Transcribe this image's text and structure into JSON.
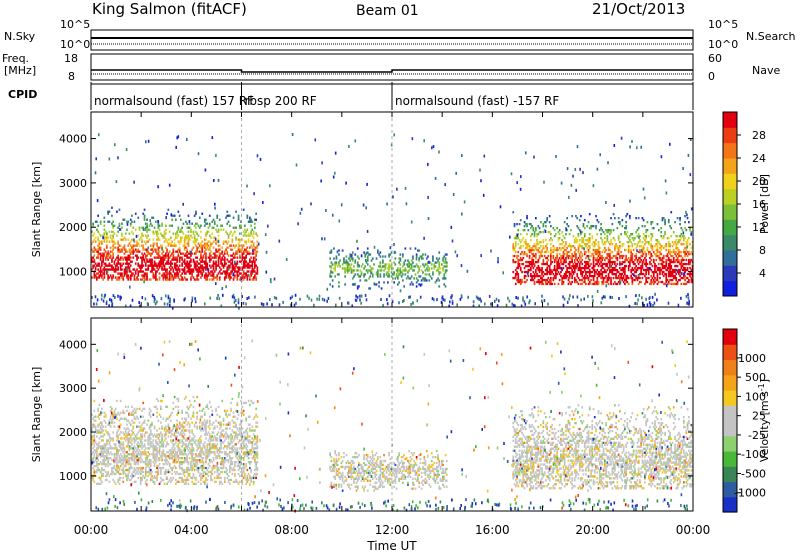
{
  "header": {
    "station": "King Salmon (fitACF)",
    "beam": "Beam 01",
    "date": "21/Oct/2013"
  },
  "strips": {
    "nsky_label": "N.Sky",
    "nsky_ticks": [
      "10^5",
      "10^0"
    ],
    "nsearch_label": "N.Search",
    "nsearch_ticks": [
      "10^5",
      "10^0"
    ],
    "freq_label_1": "Freq.",
    "freq_label_2": "[MHz]",
    "freq_ticks": [
      "18",
      "8"
    ],
    "nave_label": "Nave",
    "nave_ticks": [
      "60",
      "0"
    ],
    "cpid_label": "CPID",
    "cpid_segments": [
      {
        "label": "normalsound (fast) 157 RF",
        "start_hour": 0,
        "end_hour": 6
      },
      {
        "label": "rbsp 200 RF",
        "start_hour": 6,
        "end_hour": 12
      },
      {
        "label": "normalsound (fast) -157 RF",
        "start_hour": 12,
        "end_hour": 24
      }
    ]
  },
  "chart_data": [
    {
      "type": "heatmap",
      "name": "power",
      "ylabel": "Slant Range [km]",
      "xlim": [
        0,
        24
      ],
      "ylim": [
        200,
        4600
      ],
      "yticks": [
        "4000",
        "3000",
        "2000",
        "1000"
      ],
      "ytick_values": [
        4000,
        3000,
        2000,
        1000
      ],
      "colorbar_label": "Power [dB]",
      "colorbar_ticks": [
        "28",
        "24",
        "20",
        "16",
        "12",
        "8",
        "4"
      ],
      "colorbar_range": [
        0,
        32
      ],
      "colors": [
        "#1020e0",
        "#2a3ab8",
        "#2f6f9a",
        "#3a8a6a",
        "#44a844",
        "#7cc03a",
        "#bcd024",
        "#f0d21c",
        "#f4a418",
        "#f47418",
        "#ec3c14",
        "#e00010"
      ],
      "echo_regions": [
        {
          "t_start": 0,
          "t_end": 6.6,
          "range_start": 800,
          "range_end": 3500,
          "peak_range": 1100,
          "level": "strong"
        },
        {
          "t_start": 9.5,
          "t_end": 14.2,
          "range_start": 600,
          "range_end": 1600,
          "peak_range": 1050,
          "level": "weak"
        },
        {
          "t_start": 16.8,
          "t_end": 24,
          "range_start": 700,
          "range_end": 3400,
          "peak_range": 1000,
          "level": "strong"
        }
      ]
    },
    {
      "type": "heatmap",
      "name": "velocity",
      "ylabel": "Slant Range [km]",
      "xlabel": "Time UT",
      "xlim": [
        0,
        24
      ],
      "ylim": [
        200,
        4600
      ],
      "xticks": [
        "00:00",
        "04:00",
        "08:00",
        "12:00",
        "16:00",
        "20:00",
        "00:00"
      ],
      "xtick_values": [
        0,
        4,
        8,
        12,
        16,
        20,
        24
      ],
      "yticks": [
        "4000",
        "3000",
        "2000",
        "1000"
      ],
      "ytick_values": [
        4000,
        3000,
        2000,
        1000
      ],
      "colorbar_label": "Velocity [m s",
      "colorbar_label_sup": "-1",
      "colorbar_label_end": "]",
      "colorbar_ticks": [
        "1000",
        "500",
        "100",
        "25",
        "-25",
        "-100",
        "-500",
        "-1000"
      ],
      "colors": [
        "#1830c8",
        "#2f5ca0",
        "#3a8458",
        "#48b838",
        "#8cd070",
        "#c4c4c4",
        "#c4c4c4",
        "#f4c820",
        "#f4a418",
        "#f08018",
        "#ec5014",
        "#e00010"
      ],
      "echo_regions": [
        {
          "t_start": 0,
          "t_end": 6.6,
          "range_start": 800,
          "range_end": 3500,
          "peak_range": 1500,
          "level": "ground"
        },
        {
          "t_start": 9.5,
          "t_end": 14.2,
          "range_start": 600,
          "range_end": 1600,
          "peak_range": 1100,
          "level": "ground"
        },
        {
          "t_start": 16.8,
          "t_end": 24,
          "range_start": 700,
          "range_end": 3400,
          "peak_range": 1300,
          "level": "ground"
        }
      ]
    }
  ]
}
